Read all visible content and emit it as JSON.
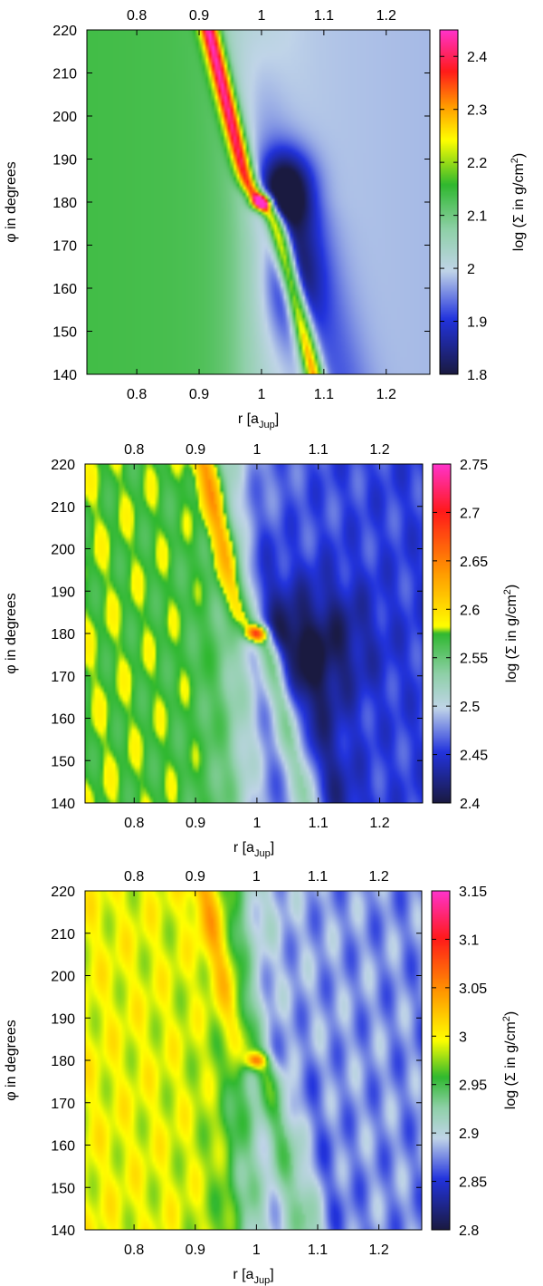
{
  "chart_data": [
    {
      "type": "heatmap",
      "xlabel_main": "r [a",
      "xlabel_sub": "Jup",
      "xlabel_end": "]",
      "ylabel_main": "φ in degrees",
      "colorbar_label_pre": "log (Σ in g/cm",
      "colorbar_label_sup": "2",
      "colorbar_label_post": ")",
      "xlim": [
        0.72,
        1.27
      ],
      "ylim": [
        140,
        220
      ],
      "xticks": [
        "0.8",
        "0.9",
        "1",
        "1.1",
        "1.2"
      ],
      "xtick_values": [
        0.8,
        0.9,
        1.0,
        1.1,
        1.2
      ],
      "top_axis_ticks": [
        "0.8",
        "0.9",
        "1",
        "1.1",
        "1.2"
      ],
      "yticks": [
        "140",
        "150",
        "160",
        "170",
        "180",
        "190",
        "200",
        "210",
        "220"
      ],
      "ytick_values": [
        140,
        150,
        160,
        170,
        180,
        190,
        200,
        210,
        220
      ],
      "colorbar_range": [
        1.8,
        2.45
      ],
      "colorbar_ticks": [
        "1.8",
        "1.9",
        "2",
        "2.1",
        "2.2",
        "2.3",
        "2.4"
      ],
      "colorbar_tick_values": [
        1.8,
        1.9,
        2.0,
        2.1,
        2.2,
        2.3,
        2.4
      ],
      "planet": {
        "r": 1.0,
        "phi": 180
      },
      "colormap": [
        "#1a1a40",
        "#2233dd",
        "#c0d4e8",
        "#8fd0a8",
        "#2fb82f",
        "#ffff00",
        "#ff9900",
        "#ff1a1a",
        "#ff33cc"
      ],
      "colormap_stops": [
        0.0,
        0.16,
        0.3,
        0.42,
        0.55,
        0.68,
        0.78,
        0.88,
        1.0
      ],
      "field": {
        "base_inner": 2.12,
        "base_outer": 1.98,
        "wake": 0.34,
        "wake_width": 0.011,
        "gap": 0.06,
        "extra_noise": 0.0,
        "voids": [
          [
            1.04,
            183,
            0.21,
            0.03,
            6
          ],
          [
            1.05,
            162,
            0.14,
            0.03,
            10
          ]
        ],
        "planet_peak": 0.33
      }
    },
    {
      "type": "heatmap",
      "xlabel_main": "r [a",
      "xlabel_sub": "Jup",
      "xlabel_end": "]",
      "ylabel_main": "φ in degrees",
      "colorbar_label_pre": "log (Σ in g/cm",
      "colorbar_label_sup": "2",
      "colorbar_label_post": ")",
      "xlim": [
        0.72,
        1.27
      ],
      "ylim": [
        140,
        220
      ],
      "xticks": [
        "0.8",
        "0.9",
        "1",
        "1.1",
        "1.2"
      ],
      "xtick_values": [
        0.8,
        0.9,
        1.0,
        1.1,
        1.2
      ],
      "top_axis_ticks": [
        "0.8",
        "0.9",
        "1",
        "1.1",
        "1.2"
      ],
      "yticks": [
        "140",
        "150",
        "160",
        "170",
        "180",
        "190",
        "200",
        "210",
        "220"
      ],
      "ytick_values": [
        140,
        150,
        160,
        170,
        180,
        190,
        200,
        210,
        220
      ],
      "colorbar_range": [
        2.4,
        2.75
      ],
      "colorbar_ticks": [
        "2.4",
        "2.45",
        "2.5",
        "2.55",
        "2.6",
        "2.65",
        "2.7",
        "2.75"
      ],
      "colorbar_tick_values": [
        2.4,
        2.45,
        2.5,
        2.55,
        2.6,
        2.65,
        2.7,
        2.75
      ],
      "planet": {
        "r": 1.0,
        "phi": 180
      },
      "colormap": [
        "#1a1a40",
        "#2233dd",
        "#c0d4e8",
        "#8fd0a8",
        "#2fb82f",
        "#ffff00",
        "#ff9900",
        "#ff1a1a",
        "#ff33cc"
      ],
      "colormap_stops": [
        0.0,
        0.15,
        0.28,
        0.38,
        0.5,
        0.52,
        0.68,
        0.86,
        1.0
      ],
      "field": {
        "base_inner": 2.56,
        "base_outer": 2.455,
        "wake": 0.08,
        "wake_width": 0.016,
        "gap": 0.03,
        "extra_noise": 0.015,
        "voids": [
          [
            1.1,
            178,
            0.05,
            0.06,
            10
          ]
        ],
        "planet_peak": 0.14
      }
    },
    {
      "type": "heatmap",
      "xlabel_main": "r [a",
      "xlabel_sub": "Jup",
      "xlabel_end": "]",
      "ylabel_main": "φ in degrees",
      "colorbar_label_pre": "log (Σ in g/cm",
      "colorbar_label_sup": "2",
      "colorbar_label_post": ")",
      "xlim": [
        0.72,
        1.27
      ],
      "ylim": [
        140,
        220
      ],
      "xticks": [
        "0.8",
        "0.9",
        "1",
        "1.1",
        "1.2"
      ],
      "xtick_values": [
        0.8,
        0.9,
        1.0,
        1.1,
        1.2
      ],
      "top_axis_ticks": [
        "0.8",
        "0.9",
        "1",
        "1.1",
        "1.2"
      ],
      "yticks": [
        "140",
        "150",
        "160",
        "170",
        "180",
        "190",
        "200",
        "210",
        "220"
      ],
      "ytick_values": [
        140,
        150,
        160,
        170,
        180,
        190,
        200,
        210,
        220
      ],
      "colorbar_range": [
        2.8,
        3.15
      ],
      "colorbar_ticks": [
        "2.8",
        "2.85",
        "2.9",
        "2.95",
        "3",
        "3.05",
        "3.1",
        "3.15"
      ],
      "colorbar_tick_values": [
        2.8,
        2.85,
        2.9,
        2.95,
        3.0,
        3.05,
        3.1,
        3.15
      ],
      "planet": {
        "r": 1.0,
        "phi": 180
      },
      "colormap": [
        "#1a1a40",
        "#2233dd",
        "#c0d4e8",
        "#8fd0a8",
        "#2fb82f",
        "#ffff00",
        "#ff9900",
        "#ff1a1a",
        "#ff33cc"
      ],
      "colormap_stops": [
        0.0,
        0.15,
        0.27,
        0.36,
        0.45,
        0.56,
        0.7,
        0.86,
        1.0
      ],
      "field": {
        "base_inner": 2.98,
        "base_outer": 2.875,
        "wake": 0.055,
        "wake_width": 0.02,
        "gap": 0.012,
        "extra_noise": 0.02,
        "voids": [],
        "planet_peak": 0.1
      }
    }
  ]
}
